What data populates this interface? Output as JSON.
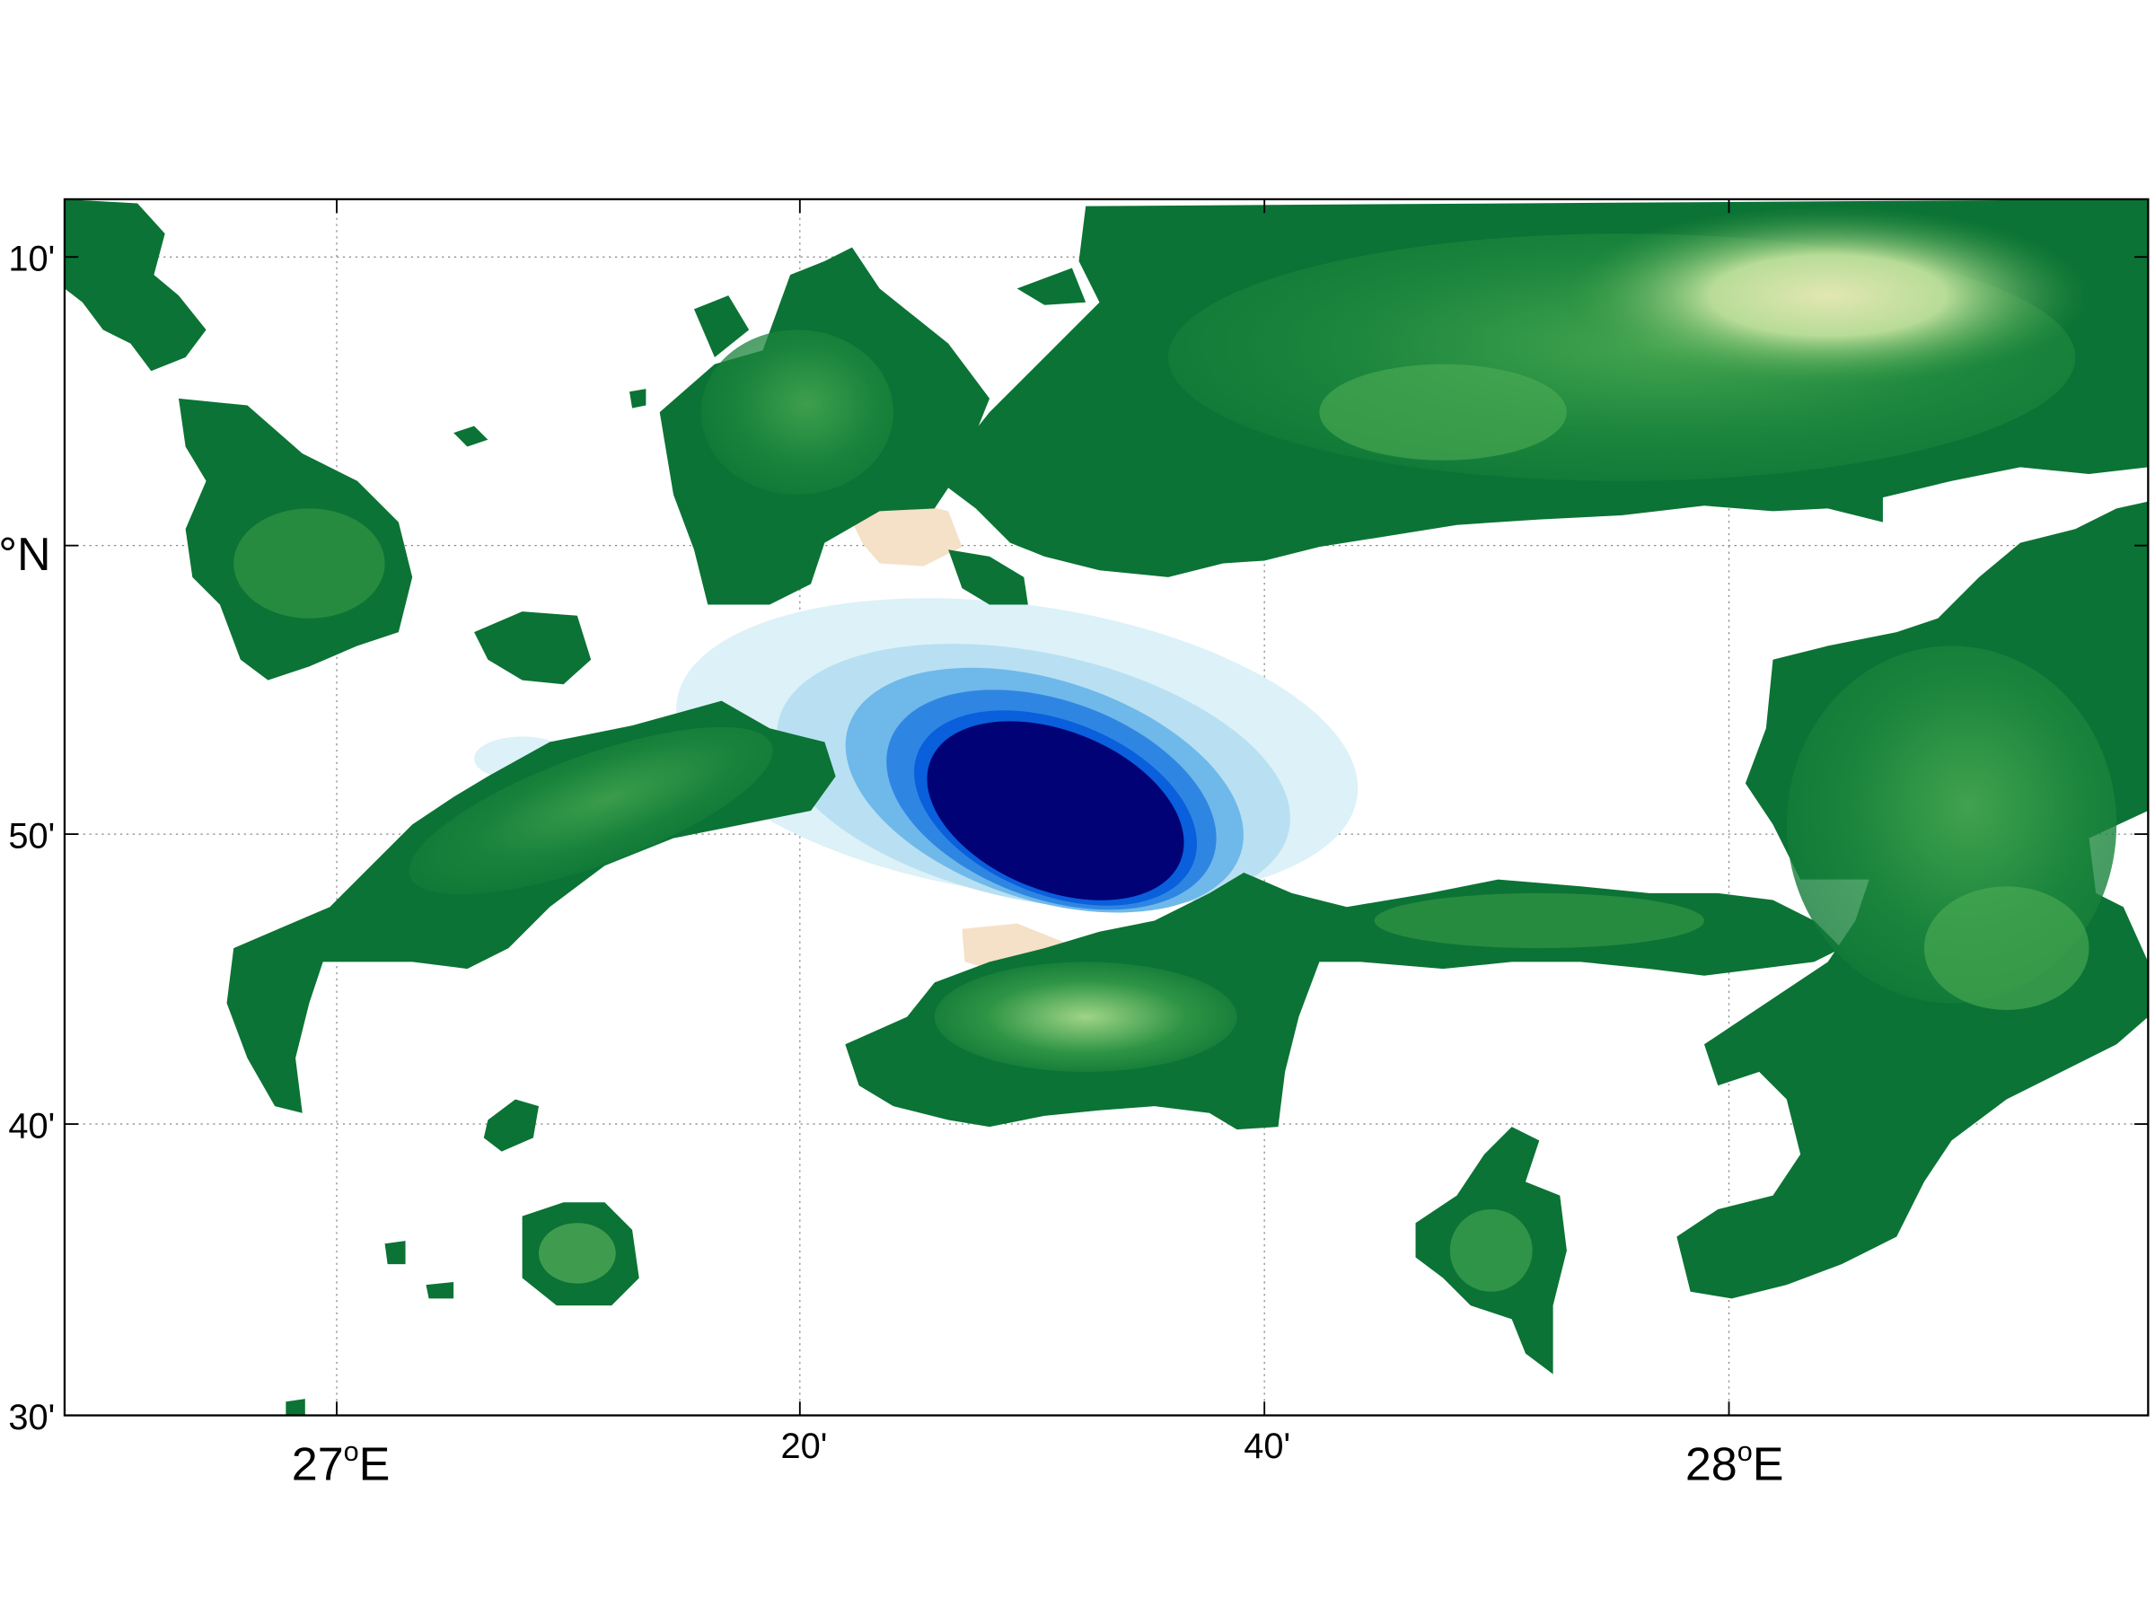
{
  "map": {
    "latitude_labels": [
      "10'",
      "°N",
      "50'",
      "40'",
      "30'"
    ],
    "longitude_labels": [
      {
        "deg": "27",
        "deg_mark": "o",
        "hemi": "E"
      },
      {
        "minutes": "20'"
      },
      {
        "minutes": "40'"
      },
      {
        "deg": "28",
        "deg_mark": "o",
        "hemi": "E"
      }
    ],
    "colors": {
      "land_dark": "#0b7335",
      "land_mid": "#3f9f47",
      "land_light": "#b8dc98",
      "land_peak": "#e2e7b2",
      "sand": "#f5e0c8",
      "water_center": "#020277",
      "water_mid": "#0a5fdc",
      "water_light": "#8ec9ea",
      "water_faint": "#dcf1f8",
      "grid": "#888888"
    },
    "grid_style": "dotted",
    "anomaly_field": "blue elliptical anomaly centered between islands"
  }
}
